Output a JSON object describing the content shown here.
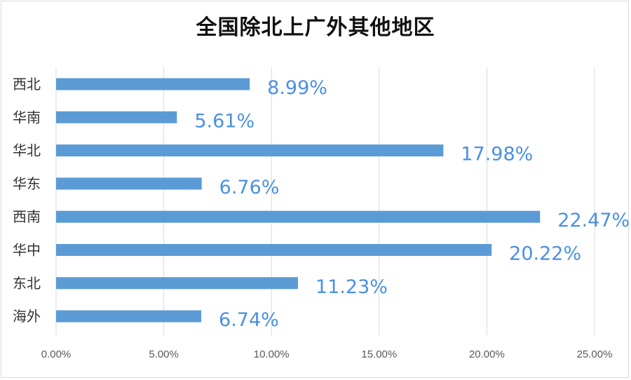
{
  "chart_data": {
    "type": "bar",
    "orientation": "horizontal",
    "title": "全国除北上广外其他地区",
    "categories": [
      "西北",
      "华南",
      "华北",
      "华东",
      "西南",
      "华中",
      "东北",
      "海外"
    ],
    "values": [
      8.99,
      5.61,
      17.98,
      6.76,
      22.47,
      20.22,
      11.23,
      6.74
    ],
    "data_labels": [
      "8.99%",
      "5.61%",
      "17.98%",
      "6.76%",
      "22.47%",
      "20.22%",
      "11.23%",
      "6.74%"
    ],
    "xlim": [
      0,
      25
    ],
    "x_ticks": [
      0,
      5,
      10,
      15,
      20,
      25
    ],
    "x_tick_labels": [
      "0.00%",
      "5.00%",
      "10.00%",
      "15.00%",
      "20.00%",
      "25.00%"
    ],
    "xlabel": "",
    "ylabel": "",
    "grid": "vertical",
    "legend": "none",
    "colors": {
      "bar": "#5b9bd5",
      "label": "#4a90e2",
      "grid": "#d9d9d9"
    }
  }
}
